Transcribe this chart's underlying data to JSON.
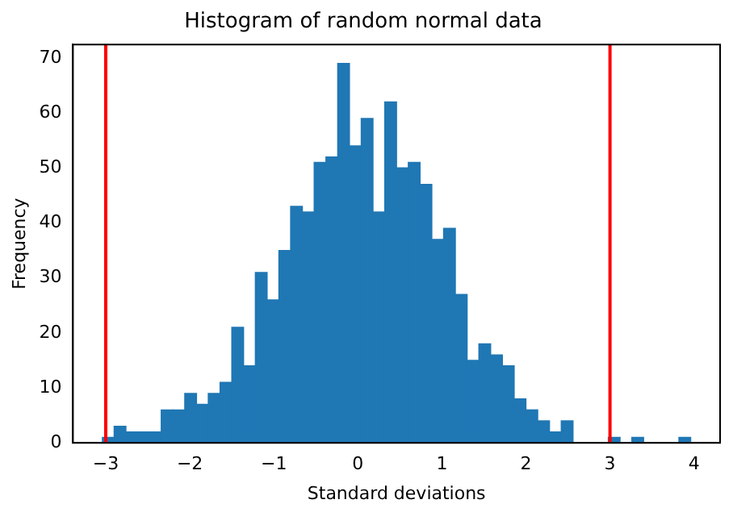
{
  "chart_data": {
    "type": "histogram",
    "title": "Histogram of random normal data",
    "xlabel": "Standard deviations",
    "ylabel": "Frequency",
    "bins": [
      -3.04,
      -2.9,
      -2.76,
      -2.62,
      -2.48,
      -2.34,
      -2.2,
      -2.06,
      -1.92,
      -1.78,
      -1.64,
      -1.5,
      -1.36,
      -1.22,
      -1.08,
      -0.94,
      -0.8,
      -0.66,
      -0.52,
      -0.38,
      -0.24,
      -0.1,
      0.04,
      0.18,
      0.32,
      0.46,
      0.6,
      0.74,
      0.88,
      1.02,
      1.16,
      1.3,
      1.44,
      1.58,
      1.72,
      1.86,
      2.0,
      2.14,
      2.28,
      2.42,
      2.56,
      2.7,
      2.84,
      2.98,
      3.12,
      3.26,
      3.4,
      3.54,
      3.68,
      3.82,
      3.96
    ],
    "values": [
      1,
      3,
      2,
      2,
      2,
      6,
      6,
      9,
      7,
      9,
      11,
      21,
      14,
      31,
      26,
      35,
      43,
      42,
      51,
      52,
      69,
      54,
      59,
      42,
      62,
      50,
      51,
      47,
      37,
      39,
      27,
      15,
      18,
      16,
      14,
      8,
      6,
      4,
      2,
      4,
      0,
      0,
      0,
      1,
      0,
      1,
      0,
      0,
      0,
      1
    ],
    "color": "#1f77b4",
    "xlim": [
      -3.39,
      4.31
    ],
    "ylim": [
      0,
      72.45
    ],
    "xticks": [
      -3,
      -2,
      -1,
      0,
      1,
      2,
      3,
      4
    ],
    "yticks": [
      0,
      10,
      20,
      30,
      40,
      50,
      60,
      70
    ],
    "ref_lines": [
      {
        "axis": "x",
        "value": -3,
        "color": "#ff0000"
      },
      {
        "axis": "x",
        "value": 3,
        "color": "#ff0000"
      }
    ],
    "grid": false,
    "legend": false
  }
}
